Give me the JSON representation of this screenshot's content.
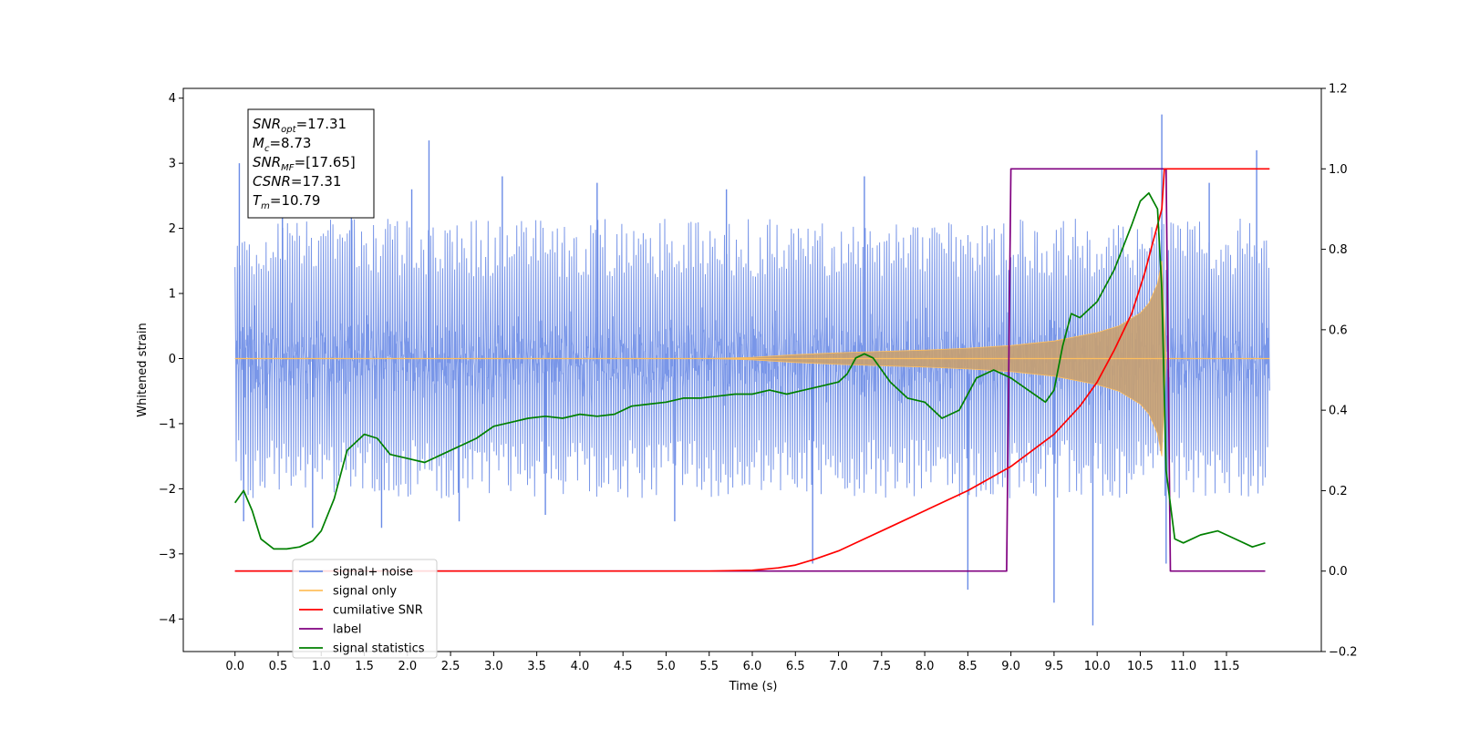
{
  "chart_data": {
    "type": "line",
    "title": "",
    "xlabel": "Time (s)",
    "ylabel_left": "Whitened strain",
    "ylabel_right": "",
    "xlim": [
      -0.6,
      12.6
    ],
    "ylim_left": [
      -4.5,
      4.15
    ],
    "ylim_right": [
      -0.2,
      1.2
    ],
    "x_ticks": [
      0.0,
      0.5,
      1.0,
      1.5,
      2.0,
      2.5,
      3.0,
      3.5,
      4.0,
      4.5,
      5.0,
      5.5,
      6.0,
      6.5,
      7.0,
      7.5,
      8.0,
      8.5,
      9.0,
      9.5,
      10.0,
      10.5,
      11.0,
      11.5
    ],
    "x_tick_labels": [
      "0.0",
      "0.5",
      "1.0",
      "1.5",
      "2.0",
      "2.5",
      "3.0",
      "3.5",
      "4.0",
      "4.5",
      "5.0",
      "5.5",
      "6.0",
      "6.5",
      "7.0",
      "7.5",
      "8.0",
      "8.5",
      "9.0",
      "9.5",
      "10.0",
      "10.5",
      "11.0",
      "11.5"
    ],
    "y_left_ticks": [
      -4,
      -3,
      -2,
      -1,
      0,
      1,
      2,
      3,
      4
    ],
    "y_left_tick_labels": [
      "−4",
      "−3",
      "−2",
      "−1",
      "0",
      "1",
      "2",
      "3",
      "4"
    ],
    "y_right_ticks": [
      -0.2,
      0.0,
      0.2,
      0.4,
      0.6,
      0.8,
      1.0,
      1.2
    ],
    "y_right_tick_labels": [
      "−0.2",
      "0.0",
      "0.2",
      "0.4",
      "0.6",
      "0.8",
      "1.0",
      "1.2"
    ],
    "grid": false,
    "legend_position": "lower-left",
    "legend": [
      {
        "label": "signal+ noise",
        "color": "#6a8be6"
      },
      {
        "label": "signal only",
        "color": "#ffbf5e"
      },
      {
        "label": "cumilative SNR",
        "color": "#ff0000"
      },
      {
        "label": "label",
        "color": "#800080"
      },
      {
        "label": "signal statistics",
        "color": "#008000"
      }
    ],
    "series": [
      {
        "name": "signal+ noise",
        "axis": "left",
        "color": "#6a8be6",
        "style": "dense noise band",
        "x_range": [
          0.0,
          12.0
        ],
        "typical_envelope": [
          -1.6,
          1.6
        ],
        "extremes": [
          {
            "x": 0.05,
            "y": 3.0
          },
          {
            "x": 0.1,
            "y": -2.5
          },
          {
            "x": 0.55,
            "y": 2.7
          },
          {
            "x": 0.9,
            "y": -2.6
          },
          {
            "x": 1.35,
            "y": 2.8
          },
          {
            "x": 1.7,
            "y": -2.6
          },
          {
            "x": 2.05,
            "y": 2.6
          },
          {
            "x": 2.25,
            "y": 3.35
          },
          {
            "x": 2.6,
            "y": -2.5
          },
          {
            "x": 3.1,
            "y": 2.8
          },
          {
            "x": 3.6,
            "y": -2.4
          },
          {
            "x": 4.2,
            "y": 2.7
          },
          {
            "x": 5.1,
            "y": -2.5
          },
          {
            "x": 5.7,
            "y": 2.6
          },
          {
            "x": 6.7,
            "y": -3.15
          },
          {
            "x": 7.3,
            "y": 2.8
          },
          {
            "x": 8.5,
            "y": -3.55
          },
          {
            "x": 9.5,
            "y": -3.75
          },
          {
            "x": 9.95,
            "y": -4.1
          },
          {
            "x": 10.75,
            "y": 3.75
          },
          {
            "x": 10.8,
            "y": -3.15
          },
          {
            "x": 11.3,
            "y": 2.7
          },
          {
            "x": 11.85,
            "y": 3.2
          }
        ]
      },
      {
        "name": "signal only",
        "axis": "left",
        "color": "#ffbf5e",
        "style": "chirp envelope",
        "x": [
          0.0,
          5.5,
          6.0,
          6.5,
          7.0,
          7.5,
          8.0,
          8.5,
          9.0,
          9.5,
          10.0,
          10.25,
          10.5,
          10.6,
          10.7,
          10.75,
          10.8,
          12.0
        ],
        "amplitude": [
          0.0,
          0.0,
          0.02,
          0.06,
          0.09,
          0.11,
          0.13,
          0.16,
          0.2,
          0.27,
          0.4,
          0.5,
          0.7,
          0.85,
          1.15,
          1.5,
          0.0,
          0.0
        ]
      },
      {
        "name": "cumilative SNR",
        "axis": "right",
        "color": "#ff0000",
        "x": [
          0.0,
          5.5,
          6.0,
          6.3,
          6.5,
          6.7,
          7.0,
          7.3,
          7.6,
          8.0,
          8.5,
          9.0,
          9.5,
          9.8,
          10.0,
          10.2,
          10.4,
          10.55,
          10.65,
          10.75,
          10.78,
          12.0
        ],
        "values": [
          0.0,
          0.0,
          0.002,
          0.008,
          0.015,
          0.028,
          0.05,
          0.08,
          0.11,
          0.15,
          0.2,
          0.26,
          0.34,
          0.41,
          0.47,
          0.55,
          0.64,
          0.74,
          0.82,
          0.9,
          1.0,
          1.0
        ]
      },
      {
        "name": "label",
        "axis": "right",
        "color": "#800080",
        "x": [
          0.0,
          8.95,
          9.0,
          10.8,
          10.85,
          11.95
        ],
        "values": [
          0.0,
          0.0,
          1.0,
          1.0,
          0.0,
          0.0
        ]
      },
      {
        "name": "signal statistics",
        "axis": "right",
        "color": "#008000",
        "x": [
          0.0,
          0.1,
          0.2,
          0.3,
          0.45,
          0.6,
          0.75,
          0.9,
          1.0,
          1.15,
          1.3,
          1.5,
          1.65,
          1.8,
          2.0,
          2.2,
          2.4,
          2.6,
          2.8,
          3.0,
          3.2,
          3.4,
          3.6,
          3.8,
          4.0,
          4.2,
          4.4,
          4.6,
          4.8,
          5.0,
          5.2,
          5.4,
          5.6,
          5.8,
          6.0,
          6.2,
          6.4,
          6.6,
          6.8,
          7.0,
          7.1,
          7.2,
          7.3,
          7.4,
          7.6,
          7.8,
          8.0,
          8.2,
          8.4,
          8.6,
          8.8,
          9.0,
          9.2,
          9.4,
          9.5,
          9.6,
          9.7,
          9.8,
          10.0,
          10.2,
          10.4,
          10.5,
          10.6,
          10.7,
          10.75,
          10.8,
          10.9,
          11.0,
          11.2,
          11.4,
          11.6,
          11.8,
          11.95
        ],
        "values": [
          0.17,
          0.2,
          0.15,
          0.08,
          0.055,
          0.055,
          0.06,
          0.075,
          0.1,
          0.18,
          0.3,
          0.34,
          0.33,
          0.29,
          0.28,
          0.27,
          0.29,
          0.31,
          0.33,
          0.36,
          0.37,
          0.38,
          0.385,
          0.38,
          0.39,
          0.385,
          0.39,
          0.41,
          0.415,
          0.42,
          0.43,
          0.43,
          0.435,
          0.44,
          0.44,
          0.45,
          0.44,
          0.45,
          0.46,
          0.47,
          0.49,
          0.53,
          0.54,
          0.53,
          0.47,
          0.43,
          0.42,
          0.38,
          0.4,
          0.48,
          0.5,
          0.48,
          0.45,
          0.42,
          0.45,
          0.56,
          0.64,
          0.63,
          0.67,
          0.75,
          0.86,
          0.92,
          0.94,
          0.9,
          0.7,
          0.25,
          0.08,
          0.07,
          0.09,
          0.1,
          0.08,
          0.06,
          0.07
        ]
      }
    ],
    "annotation": {
      "lines": [
        {
          "main": "SNR",
          "sub": "opt",
          "value": "=17.31"
        },
        {
          "main": "M",
          "sub": "c",
          "value": "=8.73"
        },
        {
          "main": "SNR",
          "sub": "MF",
          "value": "=[17.65]"
        },
        {
          "main": "CSNR",
          "sub": "",
          "value": "=17.31"
        },
        {
          "main": "T",
          "sub": "m",
          "value": "=10.79"
        }
      ]
    }
  }
}
